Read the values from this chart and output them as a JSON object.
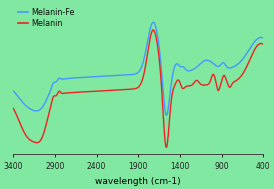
{
  "background_color": "#80e8a0",
  "xlabel": "wavelength (cm-1)",
  "color_fe": "#4499ff",
  "color_melanin": "#ee2222",
  "linewidth": 1.0,
  "legend_melanin_fe": "Melanin-Fe",
  "legend_melanin": "Melanin"
}
